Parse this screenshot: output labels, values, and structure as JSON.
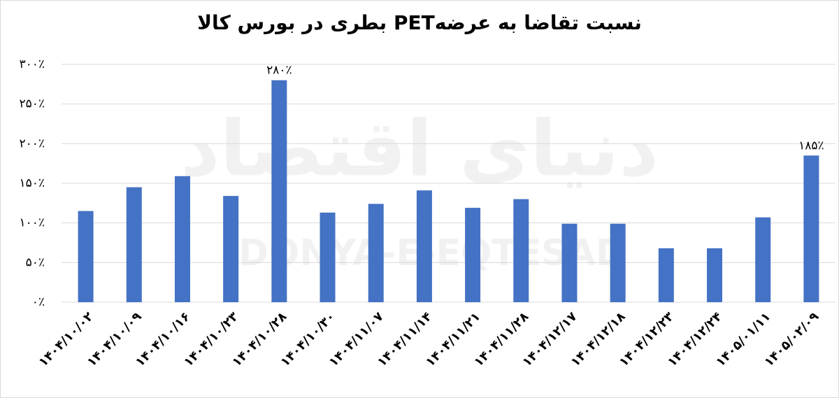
{
  "chart_data": {
    "type": "bar",
    "title": "نسبت تقاضا به عرضهPET بطری در بورس کالا",
    "watermark_fa": "دنیای اقتصاد",
    "watermark": "DONYA-E-EQTESAD",
    "categories": [
      "۱۴۰۴/۱۰/۰۲",
      "۱۴۰۴/۱۰/۰۹",
      "۱۴۰۴/۱۰/۱۶",
      "۱۴۰۴/۱۰/۲۳",
      "۱۴۰۴/۱۰/۲۸",
      "۱۴۰۴/۱۰/۳۰",
      "۱۴۰۴/۱۱/۰۷",
      "۱۴۰۴/۱۱/۱۴",
      "۱۴۰۴/۱۱/۲۱",
      "۱۴۰۴/۱۱/۲۸",
      "۱۴۰۴/۱۲/۱۷",
      "۱۴۰۴/۱۲/۱۸",
      "۱۴۰۴/۱۲/۲۳",
      "۱۴۰۴/۱۲/۲۴",
      "۱۴۰۵/۰۱/۱۱",
      "۱۴۰۵/۰۲/۰۹"
    ],
    "values": [
      115,
      145,
      159,
      134,
      280,
      113,
      124,
      141,
      119,
      130,
      99,
      99,
      68,
      68,
      107,
      185
    ],
    "value_labels": [
      null,
      null,
      null,
      null,
      "۲۸۰٪",
      null,
      null,
      null,
      null,
      null,
      null,
      null,
      null,
      null,
      null,
      "۱۸۵٪"
    ],
    "color": "#4472c4",
    "ylim": [
      0,
      300
    ],
    "yticks": [
      {
        "value": 0,
        "label": "۰٪"
      },
      {
        "value": 50,
        "label": "۵۰٪"
      },
      {
        "value": 100,
        "label": "۱۰۰٪"
      },
      {
        "value": 150,
        "label": "۱۵۰٪"
      },
      {
        "value": 200,
        "label": "۲۰۰٪"
      },
      {
        "value": 250,
        "label": "۲۵۰٪"
      },
      {
        "value": 300,
        "label": "۳۰۰٪"
      }
    ],
    "grid": true
  }
}
